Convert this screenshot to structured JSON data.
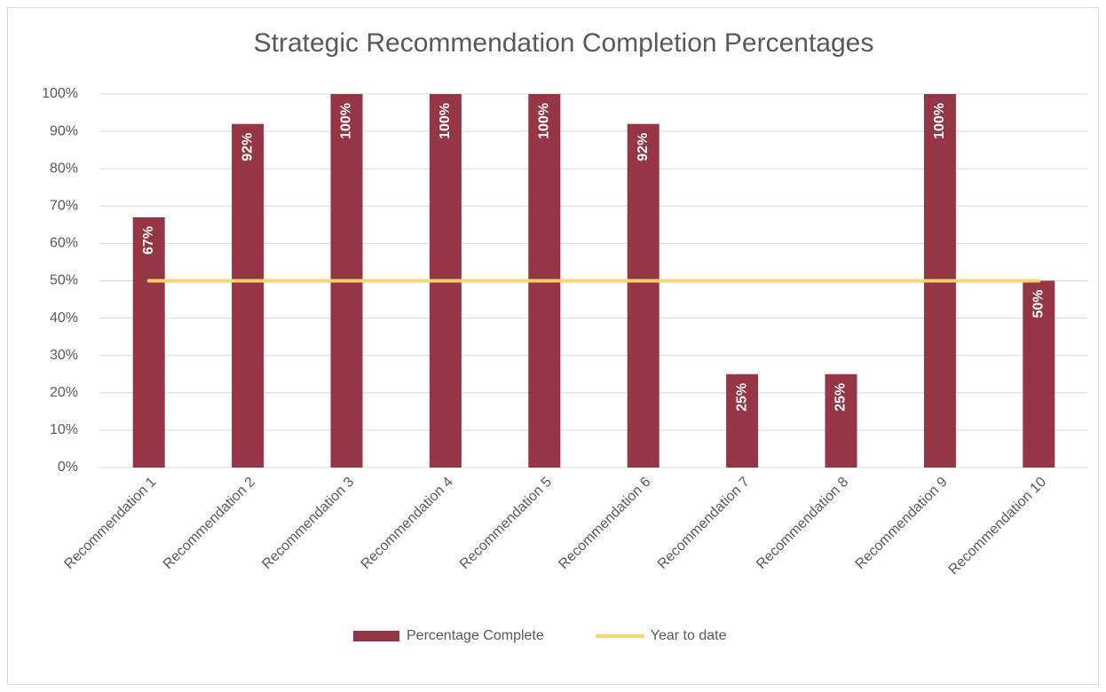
{
  "chart_data": {
    "type": "bar",
    "title": "Strategic Recommendation Completion Percentages",
    "categories": [
      "Recommendation 1",
      "Recommendation 2",
      "Recommendation 3",
      "Recommendation 4",
      "Recommendation 5",
      "Recommendation 6",
      "Recommendation 7",
      "Recommendation 8",
      "Recommendation 9",
      "Recommendation 10"
    ],
    "series": [
      {
        "name": "Percentage Complete",
        "type": "bar",
        "color": "#953546",
        "values": [
          67,
          92,
          100,
          100,
          100,
          92,
          25,
          25,
          100,
          50
        ],
        "value_labels": [
          "67%",
          "92%",
          "100%",
          "100%",
          "100%",
          "92%",
          "25%",
          "25%",
          "100%",
          "50%"
        ]
      },
      {
        "name": "Year to date",
        "type": "line",
        "color": "#fbd46c",
        "values": [
          50,
          50,
          50,
          50,
          50,
          50,
          50,
          50,
          50,
          50
        ]
      }
    ],
    "ylim": [
      0,
      100
    ],
    "yticks": [
      {
        "value": 0,
        "label": "0%"
      },
      {
        "value": 10,
        "label": "10%"
      },
      {
        "value": 20,
        "label": "20%"
      },
      {
        "value": 30,
        "label": "30%"
      },
      {
        "value": 40,
        "label": "40%"
      },
      {
        "value": 50,
        "label": "50%"
      },
      {
        "value": 60,
        "label": "60%"
      },
      {
        "value": 70,
        "label": "70%"
      },
      {
        "value": 80,
        "label": "80%"
      },
      {
        "value": 90,
        "label": "90%"
      },
      {
        "value": 100,
        "label": "100%"
      }
    ],
    "grid": true,
    "legend": "bottom"
  }
}
